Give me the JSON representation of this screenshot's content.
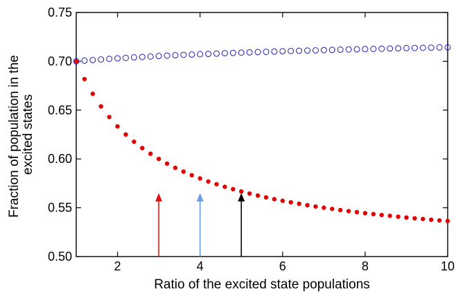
{
  "chart_data": {
    "type": "scatter",
    "title": "",
    "xlabel": "Ratio of the excited state populations",
    "ylabel_lines": [
      "Fraction of population in the",
      "excited states"
    ],
    "xlim": [
      1,
      10
    ],
    "ylim": [
      0.5,
      0.75
    ],
    "xticks": [
      2,
      4,
      6,
      8,
      10
    ],
    "xtick_labels": [
      "2",
      "4",
      "6",
      "8",
      "10"
    ],
    "yticks": [
      0.5,
      0.55,
      0.6,
      0.65,
      0.7,
      0.75
    ],
    "ytick_labels": [
      "0.50",
      "0.55",
      "0.60",
      "0.65",
      "0.70",
      "0.75"
    ],
    "grid": false,
    "series": [
      {
        "marker": "open-circle",
        "color": "#1f1fb4",
        "x": [
          1.0,
          1.2,
          1.4,
          1.6,
          1.8,
          2.0,
          2.2,
          2.4,
          2.6,
          2.8,
          3.0,
          3.2,
          3.4,
          3.6,
          3.8,
          4.0,
          4.2,
          4.4,
          4.6,
          4.8,
          5.0,
          5.2,
          5.4,
          5.6,
          5.8,
          6.0,
          6.2,
          6.4,
          6.6,
          6.8,
          7.0,
          7.2,
          7.4,
          7.6,
          7.8,
          8.0,
          8.2,
          8.4,
          8.6,
          8.8,
          9.0,
          9.2,
          9.4,
          9.6,
          9.8,
          10.0
        ],
        "y": [
          0.7,
          0.7007,
          0.7013,
          0.7019,
          0.7025,
          0.703,
          0.7035,
          0.704,
          0.7045,
          0.7049,
          0.7054,
          0.7058,
          0.7062,
          0.7066,
          0.7069,
          0.7073,
          0.7076,
          0.7079,
          0.7083,
          0.7086,
          0.7089,
          0.7092,
          0.7095,
          0.7097,
          0.71,
          0.7103,
          0.7105,
          0.7108,
          0.711,
          0.7112,
          0.7115,
          0.7117,
          0.7119,
          0.7121,
          0.7123,
          0.7125,
          0.7127,
          0.7129,
          0.7131,
          0.7133,
          0.7135,
          0.7137,
          0.7138,
          0.714,
          0.7142,
          0.7143
        ]
      },
      {
        "marker": "filled-circle",
        "color": "#e00000",
        "x": [
          1.0,
          1.2,
          1.4,
          1.6,
          1.8,
          2.0,
          2.2,
          2.4,
          2.6,
          2.8,
          3.0,
          3.2,
          3.4,
          3.6,
          3.8,
          4.0,
          4.2,
          4.4,
          4.6,
          4.8,
          5.0,
          5.2,
          5.4,
          5.6,
          5.8,
          6.0,
          6.2,
          6.4,
          6.6,
          6.8,
          7.0,
          7.2,
          7.4,
          7.6,
          7.8,
          8.0,
          8.2,
          8.4,
          8.6,
          8.8,
          9.0,
          9.2,
          9.4,
          9.6,
          9.8,
          10.0
        ],
        "y": [
          0.7,
          0.6818,
          0.6667,
          0.6538,
          0.6429,
          0.6333,
          0.625,
          0.6176,
          0.6111,
          0.6053,
          0.6,
          0.5952,
          0.5909,
          0.587,
          0.5833,
          0.58,
          0.5769,
          0.5741,
          0.5714,
          0.569,
          0.5667,
          0.5645,
          0.5625,
          0.5606,
          0.5588,
          0.5571,
          0.5556,
          0.5541,
          0.5526,
          0.5513,
          0.55,
          0.5488,
          0.5476,
          0.5465,
          0.5455,
          0.5444,
          0.5435,
          0.5426,
          0.5417,
          0.5408,
          0.54,
          0.5392,
          0.5385,
          0.5377,
          0.537,
          0.5364
        ]
      }
    ],
    "annotations": [
      {
        "type": "arrow",
        "x": 3,
        "y_from": 0.5,
        "y_to": 0.565,
        "color": "#e01010"
      },
      {
        "type": "arrow",
        "x": 4,
        "y_from": 0.5,
        "y_to": 0.565,
        "color": "#6a9be6"
      },
      {
        "type": "arrow",
        "x": 5,
        "y_from": 0.5,
        "y_to": 0.565,
        "color": "#000000"
      }
    ]
  }
}
